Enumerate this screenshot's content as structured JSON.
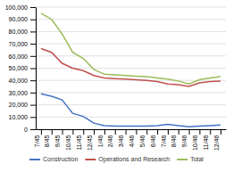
{
  "chart_data": {
    "type": "line",
    "categories": [
      "7/45",
      "8/45",
      "9/45",
      "10/45",
      "11/45",
      "12/45",
      "1/46",
      "2/46",
      "3/46",
      "4/46",
      "5/46",
      "6/46",
      "7/46",
      "8/46",
      "9/46",
      "10/46",
      "11/46",
      "12/46"
    ],
    "series": [
      {
        "name": "Construction",
        "color": "#4472c4",
        "values": [
          29000,
          27000,
          24000,
          13000,
          10500,
          5000,
          3000,
          2500,
          2500,
          2500,
          2500,
          3000,
          4000,
          3000,
          2000,
          2500,
          3000,
          3500
        ]
      },
      {
        "name": "Operations and Research",
        "color": "#c0504d",
        "values": [
          66000,
          63000,
          54000,
          50000,
          48000,
          44000,
          42000,
          41500,
          41000,
          40500,
          40000,
          39000,
          37000,
          36500,
          35000,
          38000,
          39000,
          39500
        ]
      },
      {
        "name": "Total",
        "color": "#9bbb59",
        "values": [
          95000,
          90000,
          78000,
          63000,
          58000,
          49000,
          45000,
          44500,
          44000,
          43500,
          43000,
          42000,
          41000,
          39500,
          37000,
          40500,
          42000,
          43000
        ]
      }
    ],
    "ylim": [
      0,
      100000
    ],
    "yticks": [
      0,
      {
        "value": 10000,
        "label": "10,000"
      },
      {
        "value": 20000,
        "label": "20,000"
      },
      {
        "value": 30000,
        "label": "30,000"
      },
      {
        "value": 40000,
        "label": "40,000"
      },
      {
        "value": 50000,
        "label": "50,000"
      },
      {
        "value": 60000,
        "label": "60,000"
      },
      {
        "value": 70000,
        "label": "70,000"
      },
      {
        "value": 80000,
        "label": "80,000"
      },
      {
        "value": 90000,
        "label": "90,000"
      },
      {
        "value": 100000,
        "label": "100,000"
      }
    ],
    "grid": true,
    "legend": "bottom"
  }
}
